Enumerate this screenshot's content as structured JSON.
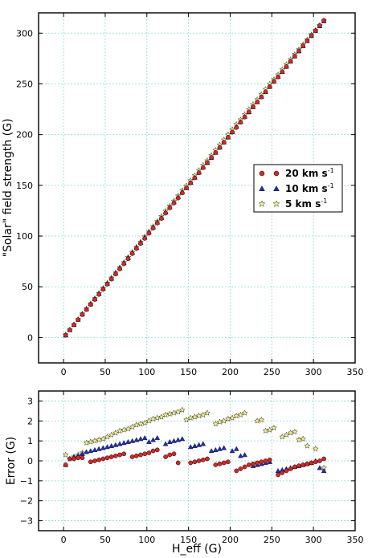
{
  "chart_data": [
    {
      "type": "scatter",
      "title": "",
      "xlabel": "",
      "ylabel": "\"Solar\" field  strength (G)",
      "xlim": [
        -30,
        350
      ],
      "ylim": [
        -25,
        320
      ],
      "xticks": [
        "0",
        "50",
        "100",
        "150",
        "200",
        "250",
        "300",
        "350"
      ],
      "yticks": [
        "0",
        "50",
        "100",
        "150",
        "200",
        "250",
        "300"
      ],
      "xtick_values": [
        0,
        50,
        100,
        150,
        200,
        250,
        300,
        350
      ],
      "ytick_values": [
        0,
        50,
        100,
        150,
        200,
        250,
        300
      ],
      "grid": true,
      "legend_position": "right",
      "series": [
        {
          "name": "20 km s",
          "sup": "-1",
          "marker": "circle",
          "color": "#d62728",
          "x": [
            2.5,
            7.5,
            12.5,
            17.5,
            22.5,
            27.5,
            32.5,
            37.5,
            42.5,
            47.5,
            52.5,
            57.5,
            62.5,
            67.5,
            72.5,
            77.5,
            82.5,
            87.5,
            92.5,
            97.5,
            102.5,
            107.5,
            112.5,
            117.5,
            122.5,
            127.5,
            132.5,
            137.5,
            142.5,
            147.5,
            152.5,
            157.5,
            162.5,
            167.5,
            172.5,
            177.5,
            182.5,
            187.5,
            192.5,
            197.5,
            202.5,
            207.5,
            212.5,
            217.5,
            222.5,
            227.5,
            232.5,
            237.5,
            242.5,
            247.5,
            252.5,
            257.5,
            262.5,
            267.5,
            272.5,
            277.5,
            282.5,
            287.5,
            292.5,
            297.5,
            302.5,
            307.5,
            312.5
          ],
          "y": [
            2.3,
            7.6,
            12.6,
            17.6,
            22.6,
            27.6,
            32.5,
            37.5,
            42.5,
            47.5,
            52.6,
            57.6,
            62.6,
            67.6,
            72.6,
            77.6,
            82.7,
            87.7,
            92.7,
            97.7,
            102.8,
            107.8,
            112.8,
            117.4,
            122.6,
            127.8,
            132.6,
            137.5,
            142.5,
            147.5,
            152.5,
            157.4,
            162.3,
            167.4,
            172.5,
            177.5,
            182.4,
            187.2,
            192.3,
            197.4,
            202.5,
            207.0,
            212.2,
            217.3,
            222.4,
            227.5,
            232.1,
            237.1,
            242.2,
            247.3,
            252.5,
            256.8,
            261.9,
            267.0,
            272.2,
            277.3,
            282.4,
            287.4,
            292.4,
            297.5,
            302.5,
            307.5,
            312.6
          ]
        },
        {
          "name": "10 km s",
          "sup": "-1",
          "marker": "triangle",
          "color": "#1f2fb4",
          "x": [
            2.5,
            7.5,
            12.5,
            17.5,
            22.5,
            27.5,
            32.5,
            37.5,
            42.5,
            47.5,
            52.5,
            57.5,
            62.5,
            67.5,
            72.5,
            77.5,
            82.5,
            87.5,
            92.5,
            97.5,
            102.5,
            107.5,
            112.5,
            117.5,
            122.5,
            127.5,
            132.5,
            137.5,
            142.5,
            147.5,
            152.5,
            157.5,
            162.5,
            167.5,
            172.5,
            177.5,
            182.5,
            187.5,
            192.5,
            197.5,
            202.5,
            207.5,
            212.5,
            217.5,
            222.5,
            227.5,
            232.5,
            237.5,
            242.5,
            247.5,
            252.5,
            257.5,
            262.5,
            267.5,
            272.5,
            277.5,
            282.5,
            287.5,
            292.5,
            297.5,
            302.5,
            307.5,
            312.5
          ],
          "y": [
            2.3,
            7.6,
            12.7,
            17.8,
            22.9,
            28.0,
            33.0,
            38.0,
            43.1,
            48.2,
            53.2,
            58.2,
            63.3,
            68.4,
            73.5,
            78.6,
            83.6,
            88.6,
            93.6,
            98.6,
            103.6,
            108.6,
            113.6,
            118.1,
            123.4,
            128.5,
            133.4,
            138.4,
            143.6,
            147.5,
            152.6,
            157.7,
            162.7,
            167.8,
            172.2,
            177.3,
            182.3,
            187.4,
            192.5,
            197.4,
            202.5,
            207.8,
            212.6,
            217.8,
            222.2,
            227.3,
            232.2,
            237.2,
            242.2,
            247.2,
            252.5,
            257.0,
            262.0,
            267.1,
            272.2,
            277.3,
            282.3,
            287.4,
            292.4,
            297.4,
            302.5,
            307.1,
            312.0
          ]
        },
        {
          "name": "5 km s",
          "sup": "-1",
          "marker": "star",
          "color": "#f2f28a",
          "x": [
            2.5,
            7.5,
            12.5,
            17.5,
            22.5,
            27.5,
            32.5,
            37.5,
            42.5,
            47.5,
            52.5,
            57.5,
            62.5,
            67.5,
            72.5,
            77.5,
            82.5,
            87.5,
            92.5,
            97.5,
            102.5,
            107.5,
            112.5,
            117.5,
            122.5,
            127.5,
            132.5,
            137.5,
            142.5,
            147.5,
            152.5,
            157.5,
            162.5,
            167.5,
            172.5,
            177.5,
            182.5,
            187.5,
            192.5,
            197.5,
            202.5,
            207.5,
            212.5,
            217.5,
            222.5,
            227.5,
            232.5,
            237.5,
            242.5,
            247.5,
            252.5,
            257.5,
            262.5,
            267.5,
            272.5,
            277.5,
            282.5,
            287.5,
            292.5,
            297.5,
            302.5,
            307.5,
            312.5
          ],
          "y": [
            2.8,
            7.6,
            12.7,
            17.8,
            23.4,
            28.5,
            33.4,
            38.5,
            43.6,
            48.6,
            53.7,
            58.8,
            63.8,
            68.9,
            74.0,
            79.1,
            84.1,
            89.2,
            94.2,
            99.3,
            104.3,
            109.4,
            114.4,
            119.5,
            124.6,
            129.7,
            134.6,
            139.7,
            145.0,
            149.6,
            154.7,
            159.7,
            164.8,
            169.9,
            174.3,
            179.5,
            184.6,
            189.8,
            194.9,
            199.9,
            205.0,
            210.0,
            214.6,
            219.7,
            224.8,
            229.7,
            234.5,
            239.5,
            244.7,
            249.9,
            254.3,
            259.0,
            264.1,
            269.2,
            274.1,
            279.0,
            283.8,
            288.9,
            293.5,
            298.5,
            302.8,
            307.5,
            312.1
          ]
        }
      ]
    },
    {
      "type": "scatter",
      "title": "",
      "xlabel": "H_eff  (G)",
      "ylabel": "Error  (G)",
      "xlim": [
        -30,
        350
      ],
      "ylim": [
        -3.5,
        3.5
      ],
      "xticks": [
        "0",
        "50",
        "100",
        "150",
        "200",
        "250",
        "300",
        "350"
      ],
      "yticks": [
        "3",
        "2",
        "1",
        "0",
        "−1",
        "−2",
        "−3"
      ],
      "xtick_values": [
        0,
        50,
        100,
        150,
        200,
        250,
        300,
        350
      ],
      "ytick_values": [
        3,
        2,
        1,
        0,
        -1,
        -2,
        -3
      ],
      "grid": true,
      "series": [
        {
          "name": "20 km s",
          "marker": "circle",
          "color": "#d62728",
          "x": [
            2.5,
            7.5,
            12.5,
            17.5,
            22.5,
            32.5,
            37.5,
            42.5,
            47.5,
            52.5,
            57.5,
            62.5,
            67.5,
            72.5,
            82.5,
            87.5,
            92.5,
            97.5,
            102.5,
            107.5,
            112.5,
            122.5,
            127.5,
            132.5,
            137.5,
            152.5,
            157.5,
            162.5,
            167.5,
            172.5,
            182.5,
            187.5,
            192.5,
            197.5,
            207.5,
            212.5,
            217.5,
            222.5,
            227.5,
            232.5,
            237.5,
            242.5,
            247.5,
            257.5,
            262.5,
            267.5,
            272.5,
            277.5,
            282.5,
            287.5,
            292.5,
            297.5,
            302.5,
            307.5,
            312.5
          ],
          "y": [
            -0.2,
            0.1,
            0.1,
            0.15,
            0.15,
            -0.05,
            0.0,
            0.05,
            0.1,
            0.15,
            0.2,
            0.25,
            0.3,
            0.35,
            0.2,
            0.25,
            0.3,
            0.35,
            0.4,
            0.5,
            0.55,
            0.2,
            0.3,
            0.35,
            -0.1,
            -0.1,
            -0.05,
            0.0,
            0.05,
            0.1,
            -0.2,
            -0.15,
            -0.1,
            -0.05,
            -0.5,
            -0.4,
            -0.3,
            -0.2,
            -0.15,
            -0.1,
            -0.05,
            0.0,
            0.05,
            -0.7,
            -0.6,
            -0.5,
            -0.4,
            -0.3,
            -0.25,
            -0.2,
            -0.15,
            -0.1,
            -0.05,
            0.0,
            0.1
          ]
        },
        {
          "name": "10 km s",
          "marker": "triangle",
          "color": "#1f2fb4",
          "x": [
            2.5,
            12.5,
            17.5,
            22.5,
            27.5,
            32.5,
            37.5,
            42.5,
            47.5,
            52.5,
            57.5,
            62.5,
            67.5,
            72.5,
            77.5,
            82.5,
            87.5,
            92.5,
            97.5,
            102.5,
            107.5,
            112.5,
            122.5,
            127.5,
            132.5,
            137.5,
            142.5,
            152.5,
            157.5,
            162.5,
            167.5,
            177.5,
            182.5,
            187.5,
            192.5,
            202.5,
            207.5,
            212.5,
            217.5,
            227.5,
            232.5,
            237.5,
            242.5,
            247.5,
            257.5,
            262.5,
            267.5,
            272.5,
            277.5,
            282.5,
            287.5,
            292.5,
            297.5,
            302.5,
            307.5,
            312.5
          ],
          "y": [
            -0.2,
            0.2,
            0.25,
            0.35,
            0.45,
            0.5,
            0.55,
            0.6,
            0.65,
            0.7,
            0.75,
            0.8,
            0.85,
            0.9,
            0.95,
            1.0,
            1.05,
            1.1,
            1.15,
            0.95,
            1.05,
            1.15,
            0.85,
            0.95,
            1.0,
            1.05,
            1.1,
            0.7,
            0.75,
            0.8,
            0.85,
            0.5,
            0.55,
            0.6,
            0.65,
            0.5,
            0.6,
            0.25,
            0.3,
            -0.25,
            -0.2,
            -0.15,
            -0.1,
            -0.05,
            -0.5,
            -0.45,
            -0.4,
            -0.35,
            -0.3,
            -0.25,
            -0.2,
            -0.15,
            -0.1,
            0.0,
            -0.35,
            -0.5
          ]
        },
        {
          "name": "5 km s",
          "marker": "star",
          "color": "#f2f28a",
          "x": [
            2.5,
            7.5,
            12.5,
            17.5,
            22.5,
            27.5,
            32.5,
            37.5,
            42.5,
            47.5,
            52.5,
            57.5,
            62.5,
            67.5,
            72.5,
            77.5,
            82.5,
            87.5,
            92.5,
            97.5,
            102.5,
            107.5,
            112.5,
            117.5,
            122.5,
            127.5,
            132.5,
            137.5,
            142.5,
            147.5,
            152.5,
            157.5,
            162.5,
            167.5,
            172.5,
            182.5,
            187.5,
            192.5,
            197.5,
            202.5,
            207.5,
            212.5,
            217.5,
            232.5,
            237.5,
            242.5,
            247.5,
            252.5,
            262.5,
            267.5,
            272.5,
            277.5,
            282.5,
            287.5,
            292.5,
            302.5,
            312.5
          ],
          "y": [
            0.3,
            0.1,
            0.2,
            0.3,
            0.4,
            0.9,
            0.95,
            1.0,
            1.05,
            1.1,
            1.2,
            1.3,
            1.4,
            1.5,
            1.55,
            1.6,
            1.7,
            1.8,
            1.85,
            1.9,
            2.0,
            2.1,
            2.15,
            2.2,
            2.3,
            2.35,
            2.4,
            2.45,
            2.55,
            2.05,
            2.15,
            2.2,
            2.25,
            2.3,
            2.4,
            1.85,
            1.95,
            2.0,
            2.1,
            2.15,
            2.25,
            2.3,
            2.4,
            2.0,
            2.05,
            1.5,
            1.55,
            1.65,
            1.2,
            1.3,
            1.4,
            1.45,
            1.05,
            1.1,
            0.75,
            0.6,
            -0.35
          ]
        }
      ]
    }
  ]
}
